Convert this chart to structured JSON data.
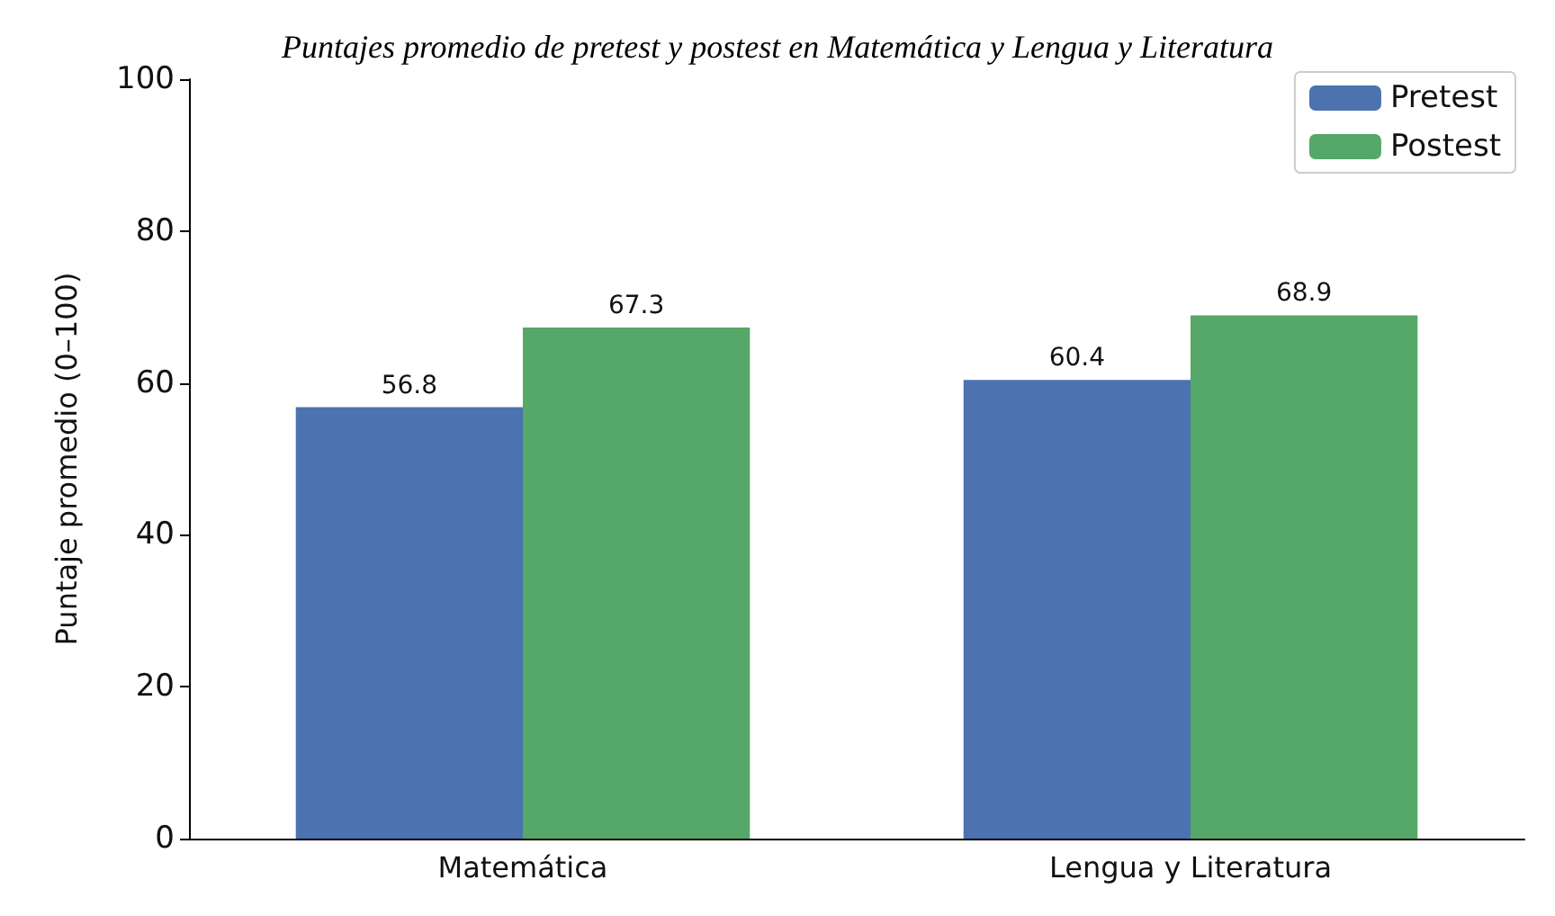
{
  "chart_data": {
    "type": "bar",
    "title": "Puntajes promedio de pretest y postest en Matemática y Lengua y Literatura",
    "ylabel": "Puntaje promedio (0–100)",
    "categories": [
      "Matemática",
      "Lengua y Literatura"
    ],
    "series": [
      {
        "name": "Pretest",
        "color": "#4c72b0",
        "values": [
          56.8,
          60.4
        ]
      },
      {
        "name": "Postest",
        "color": "#55a868",
        "values": [
          67.3,
          68.9
        ]
      }
    ],
    "ylim": [
      0,
      100
    ],
    "yticks": [
      0,
      20,
      40,
      60,
      80,
      100
    ],
    "grid": false,
    "legend": "top right",
    "data_labels": true
  }
}
